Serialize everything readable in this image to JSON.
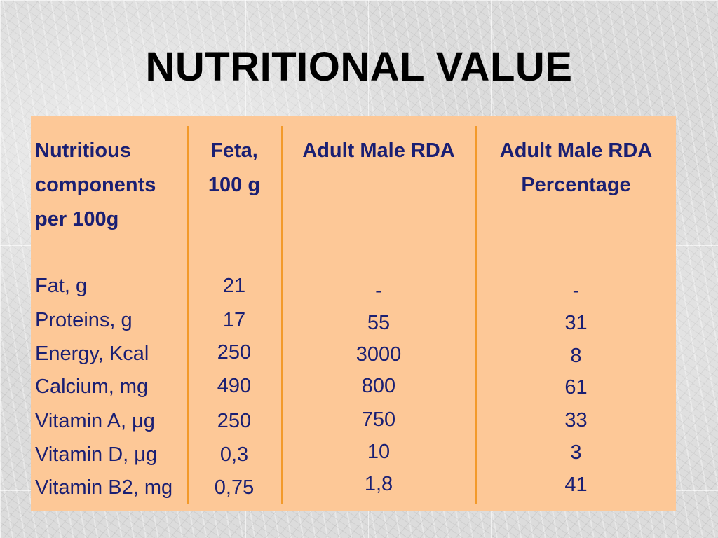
{
  "slide": {
    "title": "NUTRITIONAL VALUE"
  },
  "table": {
    "headers": [
      [
        "Nutritious",
        "components",
        "per 100g"
      ],
      [
        "Feta,",
        "100 g"
      ],
      [
        "Adult Male RDA"
      ],
      [
        "Adult Male RDA",
        "Percentage"
      ]
    ],
    "rows": [
      {
        "component": "Fat, g",
        "feta": "21",
        "rda": "-",
        "pct": "-"
      },
      {
        "component": "Proteins, g",
        "feta": "17",
        "rda": "55",
        "pct": "31"
      },
      {
        "component": "Energy, Kcal",
        "feta": "250",
        "rda": "3000",
        "pct": "8"
      },
      {
        "component": "Calcium, mg",
        "feta": "490",
        "rda": "800",
        "pct": "61"
      },
      {
        "component": "Vitamin A, μg",
        "feta": "250",
        "rda": "750",
        "pct": "33"
      },
      {
        "component": "Vitamin D, μg",
        "feta": "0,3",
        "rda": "10",
        "pct": "3"
      },
      {
        "component": "Vitamin B2, mg",
        "feta": "0,75",
        "rda": "1,8",
        "pct": "41"
      }
    ]
  },
  "colors": {
    "panel": "#fdc897",
    "separator": "#f39a2a",
    "text": "#1a1f73",
    "title": "#000000"
  }
}
